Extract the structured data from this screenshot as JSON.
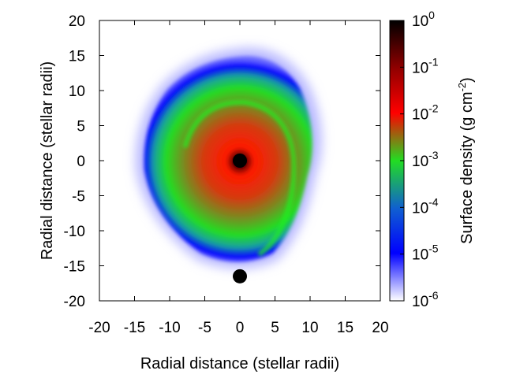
{
  "chart_data": {
    "type": "heatmap",
    "title": "",
    "xlabel": "Radial distance (stellar radii)",
    "ylabel": "Radial distance (stellar radii)",
    "xlim": [
      -20,
      20
    ],
    "ylim": [
      -20,
      20
    ],
    "x_ticks": [
      -20,
      -15,
      -10,
      -5,
      0,
      5,
      10,
      15,
      20
    ],
    "y_ticks": [
      -20,
      -15,
      -10,
      -5,
      0,
      5,
      10,
      15,
      20
    ],
    "grid": false,
    "colorbar": {
      "label": "Surface density (g cm",
      "label_exponent": "-2",
      "label_close": ")",
      "scale": "log",
      "range": [
        1e-06,
        1
      ],
      "tick_base": "10",
      "tick_exponents": [
        "0",
        "-1",
        "-2",
        "-3",
        "-4",
        "-5",
        "-6"
      ],
      "colors": [
        "#ffffff",
        "#0000ff",
        "#22ee22",
        "#ff0000",
        "#000000"
      ]
    },
    "disk": {
      "center": [
        0,
        0
      ],
      "outer_edge_density": 1e-05,
      "central_density": 1
    },
    "point_masses": [
      {
        "name": "primary star",
        "x": 0,
        "y": 0
      },
      {
        "name": "companion",
        "x": 0,
        "y": -16.5
      }
    ]
  }
}
